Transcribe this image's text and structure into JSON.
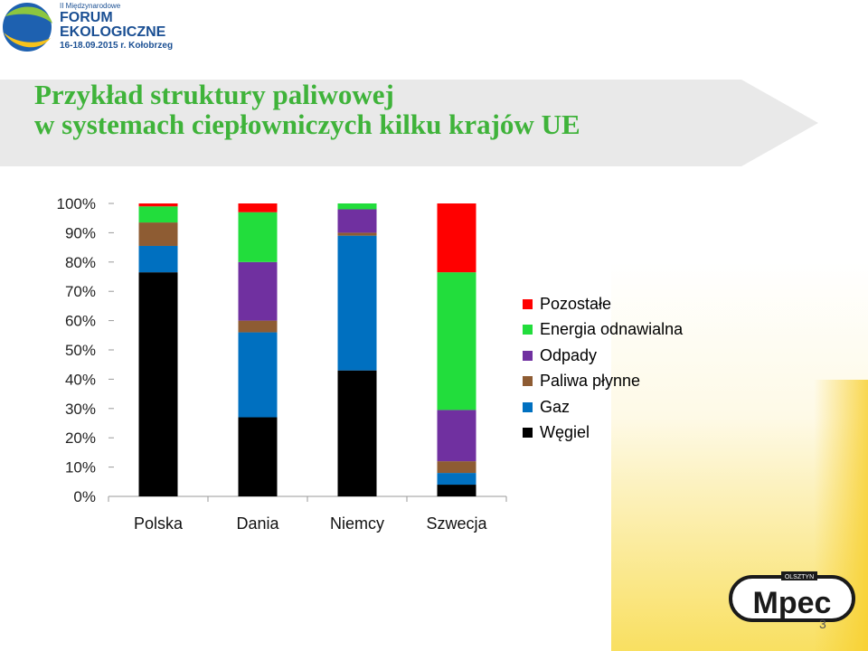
{
  "header": {
    "title": "Przykład struktury paliwowej\nw systemach ciepłowniczych kilku krajów UE",
    "forum_logo": {
      "small": "II Międzynarodowe",
      "line1": "FORUM",
      "line2": "EKOLOGICZNE",
      "dates": "16-18.09.2015 r. Kołobrzeg"
    }
  },
  "footer": {
    "company_logo": {
      "top": "OLSZTYN",
      "main": "Mpec"
    },
    "page_number": "3"
  },
  "colors": {
    "title": "#3fb33a",
    "banner": "#e9e9e9"
  },
  "chart_data": {
    "type": "bar",
    "stacked": true,
    "percent": true,
    "categories": [
      "Polska",
      "Dania",
      "Niemcy",
      "Szwecja"
    ],
    "ylim": [
      0,
      100
    ],
    "yticks": [
      "0%",
      "10%",
      "20%",
      "30%",
      "40%",
      "50%",
      "60%",
      "70%",
      "80%",
      "90%",
      "100%"
    ],
    "grid": false,
    "legend_position": "right",
    "series": [
      {
        "name": "Węgiel",
        "color": "#000000",
        "values": [
          76.5,
          27,
          43,
          4
        ]
      },
      {
        "name": "Gaz",
        "color": "#0070c0",
        "values": [
          9,
          29,
          46,
          4
        ]
      },
      {
        "name": "Paliwa płynne",
        "color": "#8e5c33",
        "values": [
          8,
          4,
          1,
          4
        ]
      },
      {
        "name": "Odpady",
        "color": "#7030a0",
        "values": [
          0,
          20,
          8,
          17.5
        ]
      },
      {
        "name": "Energia odnawialna",
        "color": "#22dd3c",
        "values": [
          5.5,
          17,
          2,
          47
        ]
      },
      {
        "name": "Pozostałe",
        "color": "#ff0000",
        "values": [
          1,
          3,
          0,
          23.5
        ]
      }
    ]
  }
}
